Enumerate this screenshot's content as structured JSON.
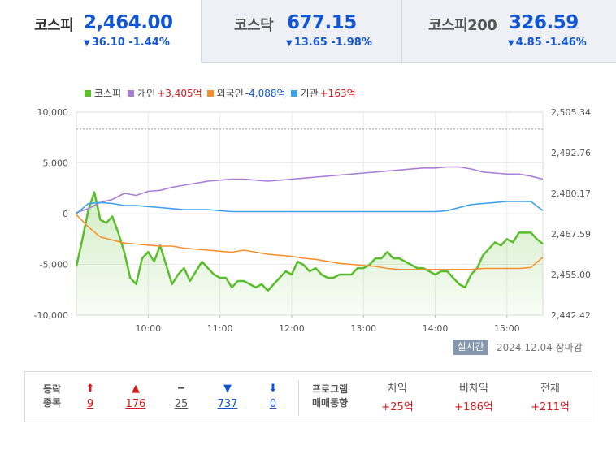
{
  "indices": [
    {
      "name": "코스피",
      "value": "2,464.00",
      "arrow": "▼",
      "change": "36.10",
      "rate": "-1.44%"
    },
    {
      "name": "코스닥",
      "value": "677.15",
      "arrow": "▼",
      "change": "13.65",
      "rate": "-1.98%"
    },
    {
      "name": "코스피200",
      "value": "326.59",
      "arrow": "▼",
      "change": "4.85",
      "rate": "-1.46%"
    }
  ],
  "legend": [
    {
      "label": "코스피",
      "value": "",
      "color": "#5bbd2b"
    },
    {
      "label": "개인",
      "value": "+3,405억",
      "color": "#a97fd8"
    },
    {
      "label": "외국인",
      "value": "-4,088억",
      "color": "#f5922f"
    },
    {
      "label": "기관",
      "value": "+163억",
      "color": "#3fa2ea"
    }
  ],
  "chart_data": {
    "type": "line",
    "x_ticks": [
      "10:00",
      "11:00",
      "12:00",
      "13:00",
      "14:00",
      "15:00"
    ],
    "x_range": [
      "09:00",
      "15:30"
    ],
    "left_axis": {
      "ticks": [
        "10,000",
        "5,000",
        "0",
        "-5,000",
        "-10,000"
      ],
      "ylim": [
        -10000,
        10000
      ]
    },
    "right_axis": {
      "ticks": [
        "2,505.34",
        "2,492.76",
        "2,480.17",
        "2,467.59",
        "2,455.00",
        "2,442.42"
      ],
      "ylim": [
        2442.42,
        2505.34
      ]
    },
    "reference_line": 2500.1,
    "grid": true,
    "series": [
      {
        "name": "코스피",
        "axis": "right",
        "color": "#5bbd2b",
        "fill": true,
        "points": [
          [
            0,
            2457.5
          ],
          [
            2,
            2466
          ],
          [
            4,
            2475
          ],
          [
            6,
            2480.5
          ],
          [
            8,
            2472
          ],
          [
            10,
            2471
          ],
          [
            12,
            2473
          ],
          [
            14,
            2468
          ],
          [
            16,
            2462
          ],
          [
            18,
            2454
          ],
          [
            20,
            2452
          ],
          [
            22,
            2460
          ],
          [
            24,
            2462
          ],
          [
            26,
            2459
          ],
          [
            28,
            2464
          ],
          [
            30,
            2458
          ],
          [
            32,
            2452
          ],
          [
            34,
            2455
          ],
          [
            36,
            2457
          ],
          [
            38,
            2453
          ],
          [
            40,
            2456
          ],
          [
            42,
            2459
          ],
          [
            44,
            2457
          ],
          [
            46,
            2455
          ],
          [
            48,
            2454
          ],
          [
            50,
            2454
          ],
          [
            52,
            2451
          ],
          [
            54,
            2453
          ],
          [
            56,
            2453
          ],
          [
            58,
            2452
          ],
          [
            60,
            2451
          ],
          [
            62,
            2452
          ],
          [
            64,
            2450
          ],
          [
            66,
            2452
          ],
          [
            68,
            2454
          ],
          [
            70,
            2456
          ],
          [
            72,
            2455
          ],
          [
            74,
            2459
          ],
          [
            76,
            2458
          ],
          [
            78,
            2456
          ],
          [
            80,
            2457
          ],
          [
            82,
            2455
          ],
          [
            84,
            2454
          ],
          [
            86,
            2454
          ],
          [
            88,
            2455
          ],
          [
            90,
            2455
          ],
          [
            92,
            2455
          ],
          [
            94,
            2457
          ],
          [
            96,
            2457
          ],
          [
            98,
            2458
          ],
          [
            100,
            2460
          ],
          [
            102,
            2460
          ],
          [
            104,
            2462
          ],
          [
            106,
            2460
          ],
          [
            108,
            2460
          ],
          [
            110,
            2459
          ],
          [
            112,
            2458
          ],
          [
            114,
            2457
          ],
          [
            116,
            2457
          ],
          [
            118,
            2456
          ],
          [
            120,
            2455
          ],
          [
            122,
            2456
          ],
          [
            124,
            2456
          ],
          [
            126,
            2454
          ],
          [
            128,
            2452
          ],
          [
            130,
            2451
          ],
          [
            132,
            2455
          ],
          [
            134,
            2457
          ],
          [
            136,
            2461
          ],
          [
            138,
            2463
          ],
          [
            140,
            2465
          ],
          [
            142,
            2464
          ],
          [
            144,
            2466
          ],
          [
            146,
            2465
          ],
          [
            148,
            2468
          ],
          [
            150,
            2468
          ],
          [
            152,
            2468
          ],
          [
            154,
            2466
          ],
          [
            156,
            2464.5
          ]
        ]
      },
      {
        "name": "개인",
        "axis": "left",
        "color": "#a97fd8",
        "fill": false,
        "points": [
          [
            0,
            100
          ],
          [
            4,
            500
          ],
          [
            8,
            1100
          ],
          [
            12,
            1400
          ],
          [
            16,
            2000
          ],
          [
            20,
            1800
          ],
          [
            24,
            2200
          ],
          [
            28,
            2300
          ],
          [
            32,
            2600
          ],
          [
            36,
            2800
          ],
          [
            40,
            3000
          ],
          [
            44,
            3200
          ],
          [
            48,
            3300
          ],
          [
            52,
            3400
          ],
          [
            56,
            3400
          ],
          [
            60,
            3300
          ],
          [
            64,
            3200
          ],
          [
            68,
            3300
          ],
          [
            72,
            3400
          ],
          [
            76,
            3500
          ],
          [
            80,
            3600
          ],
          [
            84,
            3700
          ],
          [
            88,
            3800
          ],
          [
            92,
            3900
          ],
          [
            96,
            4000
          ],
          [
            100,
            4100
          ],
          [
            104,
            4200
          ],
          [
            108,
            4300
          ],
          [
            112,
            4400
          ],
          [
            116,
            4500
          ],
          [
            120,
            4500
          ],
          [
            124,
            4600
          ],
          [
            128,
            4600
          ],
          [
            132,
            4400
          ],
          [
            136,
            4100
          ],
          [
            140,
            4000
          ],
          [
            144,
            3900
          ],
          [
            148,
            3900
          ],
          [
            152,
            3700
          ],
          [
            156,
            3400
          ]
        ]
      },
      {
        "name": "외국인",
        "axis": "left",
        "color": "#f5922f",
        "fill": false,
        "points": [
          [
            0,
            -100
          ],
          [
            4,
            -1300
          ],
          [
            8,
            -2300
          ],
          [
            12,
            -2600
          ],
          [
            16,
            -2900
          ],
          [
            20,
            -3000
          ],
          [
            24,
            -3100
          ],
          [
            28,
            -3200
          ],
          [
            32,
            -3200
          ],
          [
            36,
            -3400
          ],
          [
            40,
            -3500
          ],
          [
            44,
            -3600
          ],
          [
            48,
            -3700
          ],
          [
            52,
            -3800
          ],
          [
            56,
            -3600
          ],
          [
            60,
            -3800
          ],
          [
            64,
            -4000
          ],
          [
            68,
            -4100
          ],
          [
            72,
            -4200
          ],
          [
            76,
            -4400
          ],
          [
            80,
            -4500
          ],
          [
            84,
            -4700
          ],
          [
            88,
            -4900
          ],
          [
            92,
            -5000
          ],
          [
            96,
            -5100
          ],
          [
            100,
            -5200
          ],
          [
            104,
            -5400
          ],
          [
            108,
            -5500
          ],
          [
            112,
            -5500
          ],
          [
            116,
            -5500
          ],
          [
            120,
            -5500
          ],
          [
            124,
            -5500
          ],
          [
            128,
            -5500
          ],
          [
            132,
            -5500
          ],
          [
            136,
            -5400
          ],
          [
            140,
            -5400
          ],
          [
            144,
            -5400
          ],
          [
            148,
            -5400
          ],
          [
            152,
            -5300
          ],
          [
            156,
            -4300
          ]
        ]
      },
      {
        "name": "기관",
        "axis": "left",
        "color": "#3fa2ea",
        "fill": false,
        "points": [
          [
            0,
            0
          ],
          [
            4,
            1000
          ],
          [
            8,
            1100
          ],
          [
            12,
            1000
          ],
          [
            16,
            800
          ],
          [
            20,
            800
          ],
          [
            24,
            700
          ],
          [
            28,
            600
          ],
          [
            32,
            500
          ],
          [
            36,
            400
          ],
          [
            40,
            400
          ],
          [
            44,
            400
          ],
          [
            48,
            300
          ],
          [
            52,
            200
          ],
          [
            56,
            200
          ],
          [
            60,
            200
          ],
          [
            64,
            200
          ],
          [
            68,
            200
          ],
          [
            72,
            200
          ],
          [
            76,
            200
          ],
          [
            80,
            200
          ],
          [
            84,
            200
          ],
          [
            88,
            200
          ],
          [
            92,
            200
          ],
          [
            96,
            200
          ],
          [
            100,
            200
          ],
          [
            104,
            200
          ],
          [
            108,
            200
          ],
          [
            112,
            200
          ],
          [
            116,
            200
          ],
          [
            120,
            200
          ],
          [
            124,
            300
          ],
          [
            128,
            600
          ],
          [
            132,
            900
          ],
          [
            136,
            1000
          ],
          [
            140,
            1100
          ],
          [
            144,
            1200
          ],
          [
            148,
            1200
          ],
          [
            152,
            1200
          ],
          [
            156,
            300
          ]
        ]
      }
    ]
  },
  "realtime": {
    "badge": "실시간",
    "date": "2024.12.04",
    "status": "장마감"
  },
  "stats": {
    "head": [
      "등락",
      "종목"
    ],
    "counts": [
      {
        "icon": "⬆",
        "value": "9",
        "tone": "red"
      },
      {
        "icon": "▲",
        "value": "176",
        "tone": "red"
      },
      {
        "icon": "━",
        "value": "25",
        "tone": "gray"
      },
      {
        "icon": "▼",
        "value": "737",
        "tone": "blue"
      },
      {
        "icon": "⬇",
        "value": "0",
        "tone": "blue"
      }
    ],
    "program_head": [
      "프로그램",
      "매매동향"
    ],
    "program": [
      {
        "label": "차익",
        "value": "+25억"
      },
      {
        "label": "비차익",
        "value": "+186억"
      },
      {
        "label": "전체",
        "value": "+211억"
      }
    ]
  }
}
